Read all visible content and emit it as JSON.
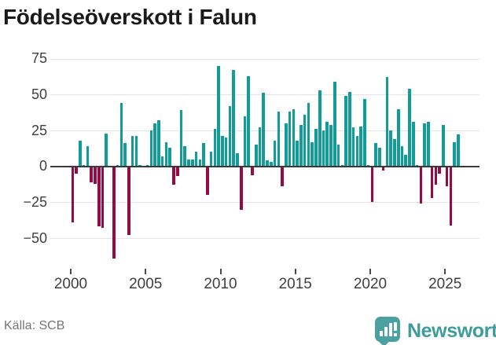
{
  "header": {
    "title": "Födelseöverskott i Falun"
  },
  "footer": {
    "source_label": "Källa: SCB",
    "logo_text": "Newsworthy"
  },
  "colors": {
    "positive_bar": "#109c98",
    "negative_bar": "#970b45",
    "gridline": "#e4e4e4",
    "zero_axis": "#3a3a3a",
    "tick_label": "#3f3f3f",
    "title": "#1a1a1a",
    "source": "#757575",
    "logo": "#4ba1a0"
  },
  "chart_data": {
    "type": "bar",
    "title": "Födelseöverskott i Falun",
    "frequency": "quarterly",
    "x_start": "2000 Q1",
    "x_end": "2025 Q4",
    "n_points": 104,
    "values": [
      -39,
      -5,
      18,
      1,
      14,
      -11,
      -12,
      -42,
      -43,
      23,
      0,
      -64,
      1,
      44,
      16,
      -48,
      21,
      21,
      1,
      0,
      1,
      25,
      30,
      32,
      7,
      17,
      13,
      -13,
      -7,
      39,
      14,
      5,
      5,
      10,
      5,
      16,
      -20,
      10,
      26,
      70,
      21,
      20,
      42,
      67,
      9,
      -30,
      35,
      63,
      -6,
      15,
      27,
      51,
      4,
      3,
      18,
      38,
      -14,
      30,
      38,
      40,
      18,
      29,
      36,
      44,
      17,
      26,
      53,
      25,
      31,
      29,
      59,
      15,
      1,
      49,
      52,
      27,
      21,
      28,
      47,
      1,
      -25,
      16,
      13,
      -3,
      62,
      25,
      19,
      40,
      14,
      8,
      54,
      31,
      1,
      -26,
      30,
      31,
      -22,
      -13,
      -5,
      29,
      -14,
      -41,
      17,
      22
    ],
    "y_ticks": [
      {
        "v": 75,
        "label": "75"
      },
      {
        "v": 50,
        "label": "50"
      },
      {
        "v": 25,
        "label": "25"
      },
      {
        "v": 0,
        "label": "0"
      },
      {
        "v": -25,
        "label": "−25"
      },
      {
        "v": -50,
        "label": "−50"
      }
    ],
    "x_ticks": [
      {
        "year": 2000,
        "label": "2000"
      },
      {
        "year": 2005,
        "label": "2005"
      },
      {
        "year": 2010,
        "label": "2010"
      },
      {
        "year": 2015,
        "label": "2015"
      },
      {
        "year": 2020,
        "label": "2020"
      },
      {
        "year": 2025,
        "label": "2025"
      }
    ],
    "ylim": [
      -70,
      80
    ],
    "grid": true,
    "legend": false,
    "bar_colors": {
      "positive": "#109c98",
      "negative": "#970b45"
    }
  }
}
